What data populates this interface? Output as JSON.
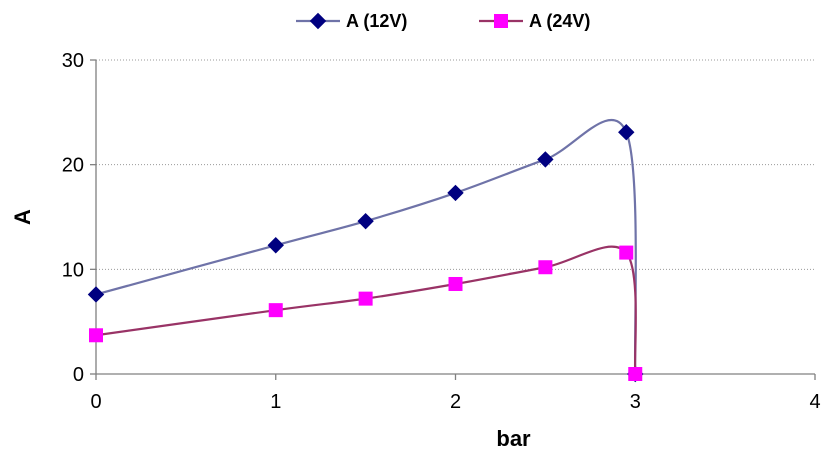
{
  "chart_data": {
    "type": "line",
    "xlabel": "bar",
    "ylabel": "A",
    "xlim": [
      0,
      4
    ],
    "ylim": [
      0,
      30
    ],
    "x_ticks": [
      0,
      1,
      2,
      3,
      4
    ],
    "y_ticks": [
      0,
      10,
      20,
      30
    ],
    "grid": "horizontal dotted",
    "legend_position": "top",
    "smooth": true,
    "series": [
      {
        "name": "A (12V)",
        "marker": "diamond",
        "line_color": "#6f73a8",
        "marker_color": "#000080",
        "x": [
          0,
          1,
          1.5,
          2,
          2.5,
          2.95,
          3.0
        ],
        "y": [
          7.6,
          12.3,
          14.6,
          17.3,
          20.5,
          23.1,
          0
        ]
      },
      {
        "name": "A (24V)",
        "marker": "square",
        "line_color": "#993366",
        "marker_color": "#ff00ff",
        "x": [
          0,
          1,
          1.5,
          2,
          2.5,
          2.95,
          3.0
        ],
        "y": [
          3.7,
          6.1,
          7.2,
          8.6,
          10.2,
          11.6,
          0
        ]
      }
    ]
  }
}
